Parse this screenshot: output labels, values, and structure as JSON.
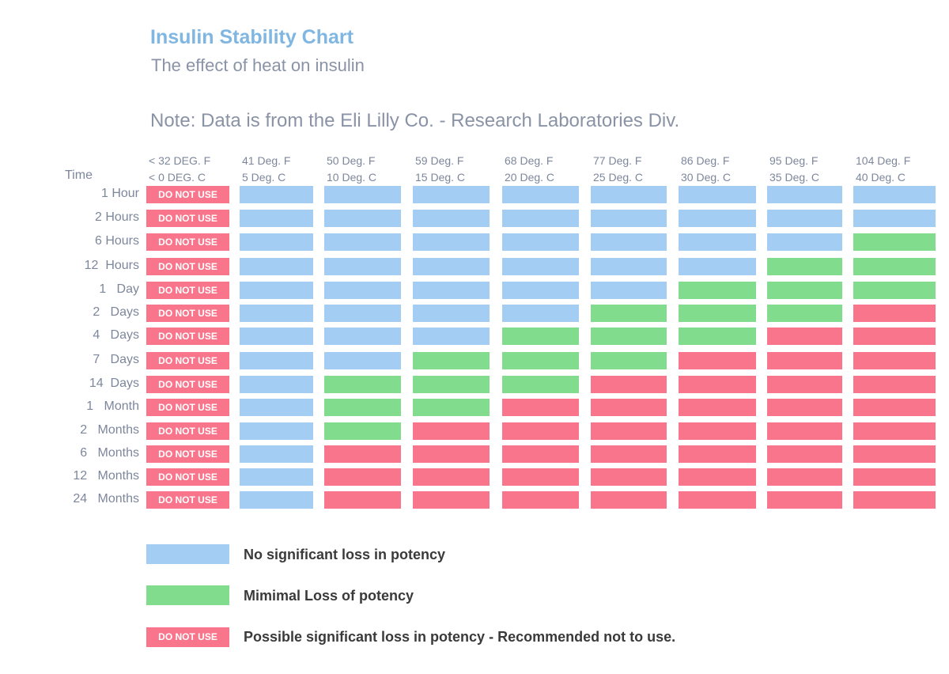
{
  "chart_data": {
    "type": "heatmap",
    "title": "Insulin Stability Chart",
    "subtitle": "The effect of heat on insulin",
    "note": "Note:  Data is from the Eli Lilly Co. - Research Laboratories Div.",
    "row_header": "Time",
    "columns": [
      {
        "f": "< 32 DEG. F",
        "c": "< 0 DEG. C"
      },
      {
        "f": "41 Deg. F",
        "c": "5 Deg. C"
      },
      {
        "f": "50 Deg. F",
        "c": "10 Deg. C"
      },
      {
        "f": "59 Deg. F",
        "c": "15 Deg. C"
      },
      {
        "f": "68 Deg. F",
        "c": "20 Deg. C"
      },
      {
        "f": "77 Deg. F",
        "c": "25 Deg. C"
      },
      {
        "f": "86 Deg. F",
        "c": "30 Deg. C"
      },
      {
        "f": "95 Deg. F",
        "c": "35 Deg. C"
      },
      {
        "f": "104 Deg. F",
        "c": "40 Deg. C"
      }
    ],
    "rows": [
      "1 Hour",
      "2 Hours",
      "6 Hours",
      "12  Hours",
      "1   Day",
      "2   Days",
      "4   Days",
      "7   Days",
      "14  Days",
      "1   Month",
      "2   Months",
      "6   Months",
      "12   Months",
      "24   Months"
    ],
    "values": [
      [
        "D",
        "B",
        "B",
        "B",
        "B",
        "B",
        "B",
        "B",
        "B"
      ],
      [
        "D",
        "B",
        "B",
        "B",
        "B",
        "B",
        "B",
        "B",
        "B"
      ],
      [
        "D",
        "B",
        "B",
        "B",
        "B",
        "B",
        "B",
        "B",
        "G"
      ],
      [
        "D",
        "B",
        "B",
        "B",
        "B",
        "B",
        "B",
        "G",
        "G"
      ],
      [
        "D",
        "B",
        "B",
        "B",
        "B",
        "B",
        "G",
        "G",
        "G"
      ],
      [
        "D",
        "B",
        "B",
        "B",
        "B",
        "G",
        "G",
        "G",
        "R"
      ],
      [
        "D",
        "B",
        "B",
        "B",
        "G",
        "G",
        "G",
        "R",
        "R"
      ],
      [
        "D",
        "B",
        "B",
        "G",
        "G",
        "G",
        "R",
        "R",
        "R"
      ],
      [
        "D",
        "B",
        "G",
        "G",
        "G",
        "R",
        "R",
        "R",
        "R"
      ],
      [
        "D",
        "B",
        "G",
        "G",
        "R",
        "R",
        "R",
        "R",
        "R"
      ],
      [
        "D",
        "B",
        "G",
        "R",
        "R",
        "R",
        "R",
        "R",
        "R"
      ],
      [
        "D",
        "B",
        "R",
        "R",
        "R",
        "R",
        "R",
        "R",
        "R"
      ],
      [
        "D",
        "B",
        "R",
        "R",
        "R",
        "R",
        "R",
        "R",
        "R"
      ],
      [
        "D",
        "B",
        "R",
        "R",
        "R",
        "R",
        "R",
        "R",
        "R"
      ]
    ],
    "cell_label_do_not_use": "DO NOT USE",
    "legend": [
      {
        "key": "B",
        "label": "No significant loss in potency",
        "color": "#a3cdf2"
      },
      {
        "key": "G",
        "label": "Mimimal Loss of potency",
        "color": "#82dc8e"
      },
      {
        "key": "R",
        "label": "Possible significant loss in potency - Recommended not to use.",
        "color": "#f8758c",
        "swatch_text": "DO NOT USE"
      }
    ]
  }
}
